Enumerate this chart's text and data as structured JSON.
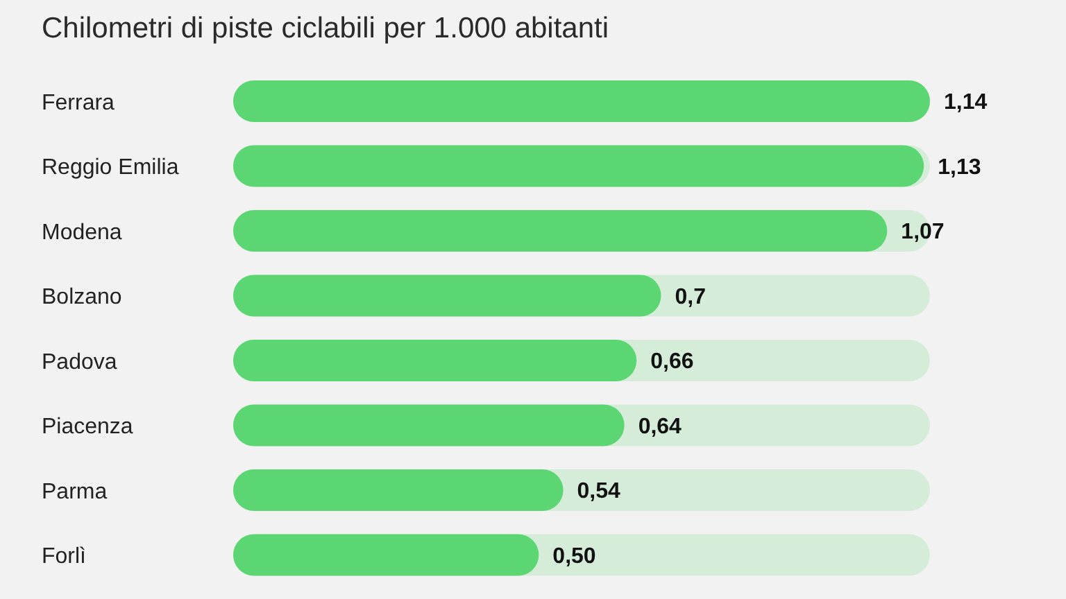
{
  "chart_data": {
    "type": "bar",
    "orientation": "horizontal",
    "title": "Chilometri di piste ciclabili per 1.000 abitanti",
    "categories": [
      "Ferrara",
      "Reggio Emilia",
      "Modena",
      "Bolzano",
      "Padova",
      "Piacenza",
      "Parma",
      "Forlì"
    ],
    "values": [
      1.14,
      1.13,
      1.07,
      0.7,
      0.66,
      0.64,
      0.54,
      0.5
    ],
    "value_labels": [
      "1,14",
      "1,13",
      "1,07",
      "0,7",
      "0,66",
      "0,64",
      "0,54",
      "0,50"
    ],
    "color": "#5bd672",
    "tick_labels": "y"
  }
}
